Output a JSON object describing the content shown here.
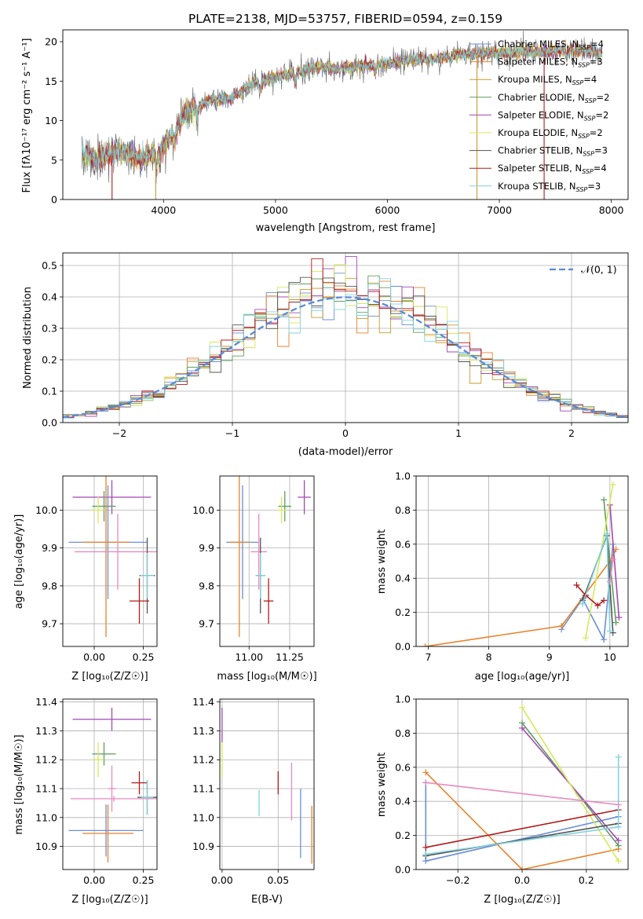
{
  "colors": {
    "series": [
      "#6a8fd8",
      "#e8822a",
      "#c89b2c",
      "#5f9e5f",
      "#a347b5",
      "#d6e85a",
      "#555555",
      "#b01c1c",
      "#7fd4de"
    ],
    "normal": "#5b8ad6",
    "pink": "#e88ac0"
  },
  "chart_data": [
    {
      "id": "spectrum",
      "type": "line",
      "title": "PLATE=2138, MJD=53757, FIBERID=0594, z=0.159",
      "xlabel": "wavelength [Angstrom, rest frame]",
      "ylabel": "Flux [fλ10⁻¹⁷ erg cm⁻² s⁻¹ A⁻¹]",
      "xlim": [
        3100,
        8150
      ],
      "ylim": [
        0,
        21.5
      ],
      "xticks": [
        4000,
        5000,
        6000,
        7000,
        8000
      ],
      "yticks": [
        0,
        5,
        10,
        15,
        20
      ],
      "grid": false,
      "legend_placement": "top-right",
      "series": [
        {
          "name": "Chabrier MILES, N_SSP=4",
          "label_main": "Chabrier MILES, N",
          "label_sub": "SSP",
          "label_tail": "=4"
        },
        {
          "name": "Salpeter MILES, N_SSP=3",
          "label_main": "Salpeter MILES, N",
          "label_sub": "SSP",
          "label_tail": "=3"
        },
        {
          "name": "Kroupa MILES, N_SSP=4",
          "label_main": "Kroupa MILES, N",
          "label_sub": "SSP",
          "label_tail": "=4"
        },
        {
          "name": "Chabrier ELODIE, N_SSP=2",
          "label_main": "Chabrier ELODIE, N",
          "label_sub": "SSP",
          "label_tail": "=2"
        },
        {
          "name": "Salpeter ELODIE, N_SSP=2",
          "label_main": "Salpeter ELODIE, N",
          "label_sub": "SSP",
          "label_tail": "=2"
        },
        {
          "name": "Kroupa ELODIE, N_SSP=2",
          "label_main": "Kroupa ELODIE, N",
          "label_sub": "SSP",
          "label_tail": "=2"
        },
        {
          "name": "Chabrier STELIB, N_SSP=3",
          "label_main": "Chabrier STELIB, N",
          "label_sub": "SSP",
          "label_tail": "=3"
        },
        {
          "name": "Salpeter STELIB, N_SSP=4",
          "label_main": "Salpeter STELIB, N",
          "label_sub": "SSP",
          "label_tail": "=4"
        },
        {
          "name": "Kroupa STELIB, N_SSP=3",
          "label_main": "Kroupa STELIB, N",
          "label_sub": "SSP",
          "label_tail": "=3"
        }
      ],
      "continuum": {
        "x": [
          3270,
          3400,
          3600,
          3800,
          3900,
          4000,
          4100,
          4200,
          4400,
          4600,
          4800,
          5000,
          5200,
          5400,
          5600,
          5800,
          6000,
          6200,
          6400,
          6600,
          6800,
          7000,
          7200,
          7400,
          7600,
          7800,
          7920
        ],
        "y": [
          6.0,
          5.2,
          6.2,
          5.2,
          5.8,
          6.8,
          8.4,
          11.0,
          12.5,
          12.8,
          14.8,
          15.5,
          16.2,
          16.8,
          16.5,
          17.0,
          17.2,
          17.8,
          17.8,
          18.3,
          18.5,
          18.6,
          18.7,
          18.8,
          18.9,
          18.8,
          18.6
        ]
      },
      "dropouts_x": [
        3540,
        3930,
        6800,
        7400
      ]
    },
    {
      "id": "residuals",
      "type": "line",
      "xlabel": "(data-model)/error",
      "ylabel": "Normed distribution",
      "xlim": [
        -2.5,
        2.5
      ],
      "ylim": [
        0,
        0.54
      ],
      "xticks": [
        -2,
        -1,
        0,
        1,
        2
      ],
      "yticks": [
        0.0,
        0.1,
        0.2,
        0.3,
        0.4,
        0.5
      ],
      "grid": true,
      "legend_placement": "top-right",
      "normal_label": "𝒩(0, 1)",
      "bin_width": 0.1,
      "bin_start": -2.5
    },
    {
      "id": "age-vs-Z",
      "type": "scatter",
      "xlabel": "Z [log₁₀(Z/Z☉)]",
      "ylabel": "age  [log₁₀(age/yr)]",
      "xlim": [
        -0.16,
        0.32
      ],
      "ylim": [
        9.64,
        10.09
      ],
      "xticks": [
        0.0,
        0.25
      ],
      "yticks": [
        9.7,
        9.8,
        9.9,
        10.0
      ],
      "grid": true,
      "points": [
        {
          "x": 0.09,
          "y": 10.034,
          "xerr": 0.2,
          "yerr": 0.045,
          "color": "#a347b5"
        },
        {
          "x": 0.05,
          "y": 10.01,
          "xerr": 0.06,
          "yerr": 0.04,
          "color": "#5f9e5f"
        },
        {
          "x": 0.02,
          "y": 10.0,
          "xerr": 0.04,
          "yerr": 0.035,
          "color": "#d6e85a"
        },
        {
          "x": 0.07,
          "y": 9.915,
          "xerr": 0.2,
          "yerr": 0.15,
          "color": "#6a8fd8"
        },
        {
          "x": 0.06,
          "y": 9.915,
          "xerr": 0.12,
          "yerr": 0.25,
          "color": "#e8822a"
        },
        {
          "x": 0.12,
          "y": 9.89,
          "xerr": 0.22,
          "yerr": 0.1,
          "color": "#e88ac0"
        },
        {
          "x": 0.27,
          "y": 9.827,
          "xerr": 0.04,
          "yerr": 0.1,
          "color": "#555555"
        },
        {
          "x": 0.27,
          "y": 9.827,
          "xerr": 0.035,
          "yerr": 0.06,
          "color": "#7fd4de"
        },
        {
          "x": 0.23,
          "y": 9.76,
          "xerr": 0.05,
          "yerr": 0.06,
          "color": "#b01c1c"
        }
      ]
    },
    {
      "id": "age-vs-mass",
      "type": "scatter",
      "xlabel": "mass [log₁₀(M/M☉)]",
      "ylabel": "",
      "xlim": [
        10.82,
        11.4
      ],
      "ylim": [
        9.64,
        10.09
      ],
      "xticks": [
        11.0,
        11.25
      ],
      "yticks": [
        9.7,
        9.8,
        9.9,
        10.0
      ],
      "grid": true,
      "points": [
        {
          "x": 11.34,
          "y": 10.034,
          "xerr": 0.04,
          "yerr": 0.045,
          "color": "#a347b5"
        },
        {
          "x": 11.22,
          "y": 10.01,
          "xerr": 0.04,
          "yerr": 0.04,
          "color": "#5f9e5f"
        },
        {
          "x": 11.2,
          "y": 10.0,
          "xerr": 0.03,
          "yerr": 0.035,
          "color": "#d6e85a"
        },
        {
          "x": 10.96,
          "y": 9.915,
          "xerr": 0.1,
          "yerr": 0.15,
          "color": "#6a8fd8"
        },
        {
          "x": 10.94,
          "y": 9.915,
          "xerr": 0.06,
          "yerr": 0.25,
          "color": "#e8822a"
        },
        {
          "x": 11.06,
          "y": 9.89,
          "xerr": 0.05,
          "yerr": 0.1,
          "color": "#e88ac0"
        },
        {
          "x": 11.07,
          "y": 9.827,
          "xerr": 0.03,
          "yerr": 0.1,
          "color": "#555555"
        },
        {
          "x": 11.07,
          "y": 9.827,
          "xerr": 0.03,
          "yerr": 0.06,
          "color": "#7fd4de"
        },
        {
          "x": 11.12,
          "y": 9.76,
          "xerr": 0.03,
          "yerr": 0.06,
          "color": "#b01c1c"
        }
      ]
    },
    {
      "id": "weight-vs-age",
      "type": "line",
      "xlabel": "age  [log₁₀(age/yr)]",
      "ylabel": "mass weight",
      "xlim": [
        6.8,
        10.3
      ],
      "ylim": [
        0,
        1.0
      ],
      "xticks": [
        7,
        8,
        9,
        10
      ],
      "yticks": [
        0.0,
        0.2,
        0.4,
        0.6,
        0.8,
        1.0
      ],
      "grid": true,
      "series": [
        {
          "color": "#6a8fd8",
          "x": [
            9.2,
            9.55,
            9.9,
            10.05
          ],
          "y": [
            0.1,
            0.28,
            0.04,
            0.6
          ]
        },
        {
          "color": "#e8822a",
          "x": [
            6.95,
            9.2,
            10.0,
            10.1
          ],
          "y": [
            0.0,
            0.12,
            0.5,
            0.57
          ]
        },
        {
          "color": "#5f9e5f",
          "x": [
            9.9,
            10.1
          ],
          "y": [
            0.86,
            0.14
          ]
        },
        {
          "color": "#a347b5",
          "x": [
            10.0,
            10.15
          ],
          "y": [
            0.83,
            0.17
          ]
        },
        {
          "color": "#d6e85a",
          "x": [
            9.6,
            10.05
          ],
          "y": [
            0.05,
            0.95
          ]
        },
        {
          "color": "#555555",
          "x": [
            9.55,
            9.95,
            10.05
          ],
          "y": [
            0.27,
            0.65,
            0.08
          ]
        },
        {
          "color": "#b01c1c",
          "x": [
            9.45,
            9.6,
            9.8,
            9.9
          ],
          "y": [
            0.36,
            0.3,
            0.24,
            0.27
          ]
        },
        {
          "color": "#7fd4de",
          "x": [
            9.55,
            9.95,
            10.0
          ],
          "y": [
            0.25,
            0.66,
            0.09
          ]
        },
        {
          "color": "#e88ac0",
          "x": [
            10.0,
            10.05
          ],
          "y": [
            0.38,
            0.51
          ]
        }
      ]
    },
    {
      "id": "mass-vs-Z",
      "type": "scatter",
      "xlabel": "Z [log₁₀(Z/Z☉)]",
      "ylabel": "mass [log₁₀(M/M☉)]",
      "xlim": [
        -0.16,
        0.32
      ],
      "ylim": [
        10.82,
        11.41
      ],
      "xticks": [
        0.0,
        0.25
      ],
      "yticks": [
        10.9,
        11.0,
        11.1,
        11.2,
        11.3,
        11.4
      ],
      "grid": true,
      "points": [
        {
          "x": 0.09,
          "y": 11.34,
          "xerr": 0.2,
          "yerr": 0.04,
          "color": "#a347b5"
        },
        {
          "x": 0.05,
          "y": 11.22,
          "xerr": 0.06,
          "yerr": 0.04,
          "color": "#5f9e5f"
        },
        {
          "x": 0.02,
          "y": 11.2,
          "xerr": 0.03,
          "yerr": 0.06,
          "color": "#d6e85a"
        },
        {
          "x": 0.09,
          "y": 11.1,
          "xerr": 0.02,
          "yerr": 0.08,
          "color": "#e88ac0"
        },
        {
          "x": 0.23,
          "y": 11.12,
          "xerr": 0.04,
          "yerr": 0.04,
          "color": "#b01c1c"
        },
        {
          "x": 0.27,
          "y": 11.07,
          "xerr": 0.05,
          "yerr": 0.06,
          "color": "#555555"
        },
        {
          "x": 0.27,
          "y": 11.07,
          "xerr": 0.03,
          "yerr": 0.06,
          "color": "#7fd4de"
        },
        {
          "x": 0.1,
          "y": 11.065,
          "xerr": 0.22,
          "yerr": 0.01,
          "color": "#e88ac0"
        },
        {
          "x": 0.06,
          "y": 10.955,
          "xerr": 0.19,
          "yerr": 0.09,
          "color": "#6a8fd8"
        },
        {
          "x": 0.07,
          "y": 10.945,
          "xerr": 0.13,
          "yerr": 0.1,
          "color": "#e8822a"
        }
      ]
    },
    {
      "id": "mass-vs-ebv",
      "type": "scatter",
      "xlabel": "E(B-V)",
      "ylabel": "",
      "xlim": [
        -0.002,
        0.082
      ],
      "ylim": [
        10.82,
        11.41
      ],
      "xticks": [
        0.0,
        0.05
      ],
      "yticks": [
        10.9,
        11.0,
        11.1,
        11.2,
        11.3,
        11.4
      ],
      "grid": true,
      "points": [
        {
          "x": 0.0,
          "y": 11.32,
          "xerr": 0.0,
          "yerr": 0.06,
          "color": "#a347b5"
        },
        {
          "x": 0.0,
          "y": 11.2,
          "xerr": 0.0,
          "yerr": 0.06,
          "color": "#d6e85a"
        },
        {
          "x": 0.033,
          "y": 11.05,
          "xerr": 0.0,
          "yerr": 0.045,
          "color": "#7fd4de"
        },
        {
          "x": 0.05,
          "y": 11.12,
          "xerr": 0.0,
          "yerr": 0.04,
          "color": "#b01c1c"
        },
        {
          "x": 0.062,
          "y": 11.09,
          "xerr": 0.0,
          "yerr": 0.1,
          "color": "#e88ac0"
        },
        {
          "x": 0.07,
          "y": 10.98,
          "xerr": 0.0,
          "yerr": 0.12,
          "color": "#6a8fd8"
        },
        {
          "x": 0.08,
          "y": 10.94,
          "xerr": 0.0,
          "yerr": 0.1,
          "color": "#e8822a"
        }
      ]
    },
    {
      "id": "weight-vs-Z",
      "type": "line",
      "xlabel": "Z [log₁₀(Z/Z☉)]",
      "ylabel": "mass weight",
      "xlim": [
        -0.33,
        0.33
      ],
      "ylim": [
        0,
        1.0
      ],
      "xticks": [
        -0.2,
        0.0,
        0.2
      ],
      "yticks": [
        0.0,
        0.2,
        0.4,
        0.6,
        0.8,
        1.0
      ],
      "grid": true,
      "series": [
        {
          "color": "#6a8fd8",
          "x": [
            -0.3,
            -0.3,
            0.3
          ],
          "y": [
            0.51,
            0.05,
            0.31
          ]
        },
        {
          "color": "#e8822a",
          "x": [
            -0.3,
            0.0,
            0.3
          ],
          "y": [
            0.57,
            0.0,
            0.12
          ]
        },
        {
          "color": "#5f9e5f",
          "x": [
            0.0,
            0.3
          ],
          "y": [
            0.86,
            0.14
          ]
        },
        {
          "color": "#a347b5",
          "x": [
            0.0,
            0.3
          ],
          "y": [
            0.83,
            0.17
          ]
        },
        {
          "color": "#d6e85a",
          "x": [
            0.0,
            0.3
          ],
          "y": [
            0.95,
            0.05
          ]
        },
        {
          "color": "#555555",
          "x": [
            -0.3,
            0.3
          ],
          "y": [
            0.08,
            0.27
          ]
        },
        {
          "color": "#b01c1c",
          "x": [
            -0.3,
            0.3
          ],
          "y": [
            0.13,
            0.35
          ]
        },
        {
          "color": "#7fd4de",
          "x": [
            -0.3,
            0.3,
            0.3
          ],
          "y": [
            0.09,
            0.25,
            0.66
          ]
        },
        {
          "color": "#e88ac0",
          "x": [
            -0.3,
            0.3
          ],
          "y": [
            0.51,
            0.38
          ]
        }
      ]
    }
  ]
}
